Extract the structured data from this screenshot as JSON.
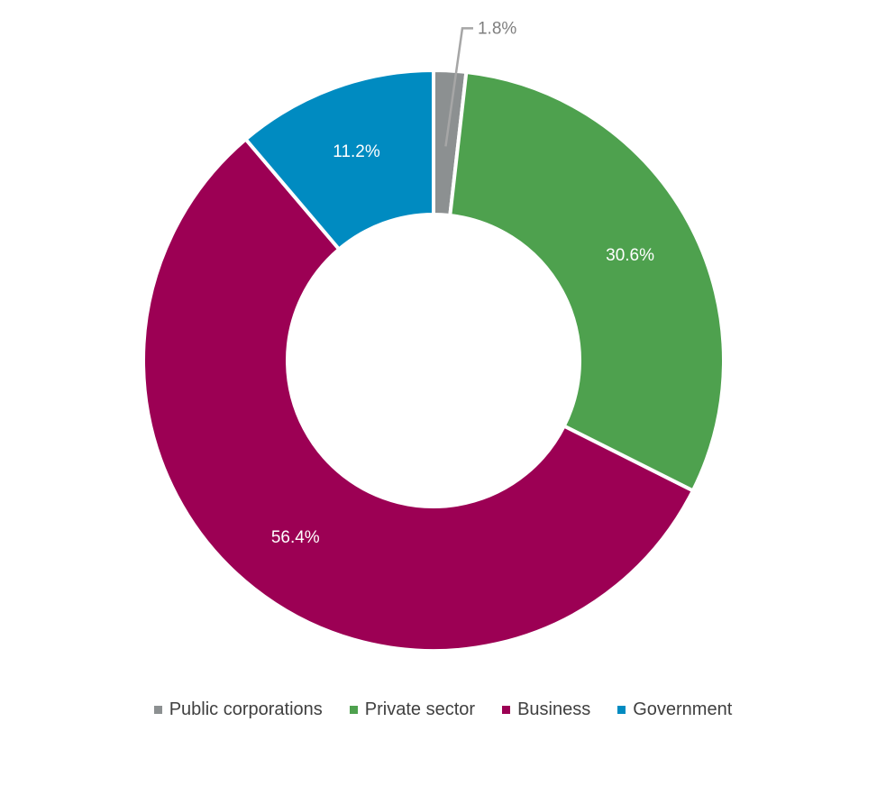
{
  "chart_data": {
    "type": "pie",
    "variant": "donut",
    "categories": [
      "Public corporations",
      "Private sector",
      "Business",
      "Government"
    ],
    "values": [
      1.8,
      30.6,
      56.4,
      11.2
    ],
    "labels": [
      "1.8%",
      "30.6%",
      "56.4%",
      "11.2%"
    ],
    "colors": [
      "#8c9091",
      "#4ea14e",
      "#9c0054",
      "#008bc1"
    ],
    "label_colors": [
      "#7f7f7f",
      "#ffffff",
      "#ffffff",
      "#ffffff"
    ],
    "leader_line_color": "#a6a6a6",
    "start": "12 o'clock, clockwise",
    "legend_position": "bottom-center",
    "title": ""
  }
}
